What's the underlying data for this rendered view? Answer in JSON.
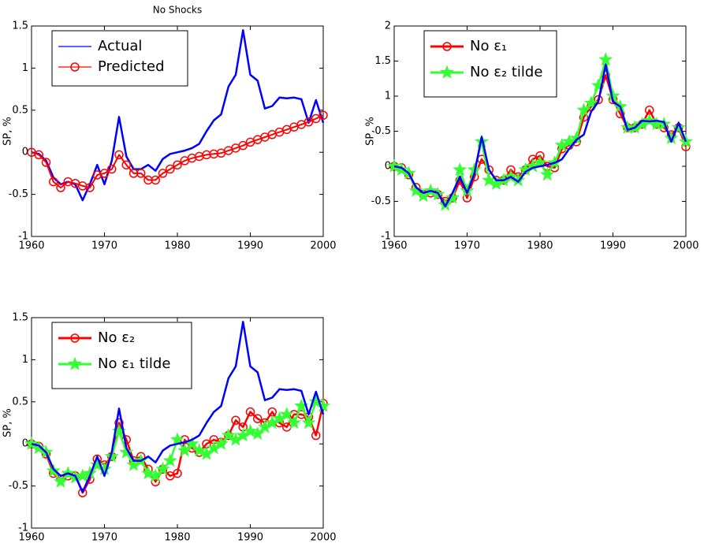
{
  "chart_data": [
    {
      "type": "line",
      "title": "No Shocks",
      "ylabel": "SP, %",
      "x": [
        1960,
        1961,
        1962,
        1963,
        1964,
        1965,
        1966,
        1967,
        1968,
        1969,
        1970,
        1971,
        1972,
        1973,
        1974,
        1975,
        1976,
        1977,
        1978,
        1979,
        1980,
        1981,
        1982,
        1983,
        1984,
        1985,
        1986,
        1987,
        1988,
        1989,
        1990,
        1991,
        1992,
        1993,
        1994,
        1995,
        1996,
        1997,
        1998,
        1999,
        2000
      ],
      "series": [
        {
          "name": "Actual",
          "color": "#0000ff",
          "marker": "none",
          "values": [
            0,
            -0.02,
            -0.1,
            -0.3,
            -0.38,
            -0.35,
            -0.38,
            -0.57,
            -0.38,
            -0.15,
            -0.38,
            -0.1,
            0.42,
            -0.05,
            -0.2,
            -0.2,
            -0.15,
            -0.22,
            -0.08,
            -0.02,
            0.0,
            0.02,
            0.05,
            0.1,
            0.25,
            0.38,
            0.45,
            0.78,
            0.92,
            1.45,
            0.92,
            0.85,
            0.52,
            0.55,
            0.65,
            0.64,
            0.65,
            0.63,
            0.35,
            0.62,
            0.35
          ]
        },
        {
          "name": "Predicted",
          "color": "#ff0000",
          "marker": "circle",
          "values": [
            0,
            -0.03,
            -0.12,
            -0.35,
            -0.42,
            -0.35,
            -0.37,
            -0.4,
            -0.42,
            -0.27,
            -0.25,
            -0.2,
            -0.03,
            -0.15,
            -0.25,
            -0.25,
            -0.33,
            -0.33,
            -0.25,
            -0.2,
            -0.15,
            -0.1,
            -0.07,
            -0.05,
            -0.03,
            -0.02,
            -0.01,
            0.02,
            0.05,
            0.08,
            0.12,
            0.15,
            0.18,
            0.21,
            0.24,
            0.27,
            0.3,
            0.33,
            0.36,
            0.4,
            0.44
          ]
        }
      ],
      "xlim": [
        1960,
        2000
      ],
      "xticks": [
        1960,
        1970,
        1980,
        1990,
        2000
      ],
      "ylim": [
        -1,
        1.5
      ],
      "yticks": [
        -1,
        -0.5,
        0,
        0.5,
        1,
        1.5
      ],
      "legend": "upper left"
    },
    {
      "type": "line",
      "ylabel": "SP, %",
      "x": [
        1960,
        1961,
        1962,
        1963,
        1964,
        1965,
        1966,
        1967,
        1968,
        1969,
        1970,
        1971,
        1972,
        1973,
        1974,
        1975,
        1976,
        1977,
        1978,
        1979,
        1980,
        1981,
        1982,
        1983,
        1984,
        1985,
        1986,
        1987,
        1988,
        1989,
        1990,
        1991,
        1992,
        1993,
        1994,
        1995,
        1996,
        1997,
        1998,
        1999,
        2000
      ],
      "series": [
        {
          "name": "No ε₁",
          "color": "#ff0000",
          "marker": "circle",
          "values": [
            0,
            -0.02,
            -0.12,
            -0.3,
            -0.4,
            -0.38,
            -0.4,
            -0.5,
            -0.45,
            -0.2,
            -0.45,
            -0.15,
            0.1,
            -0.05,
            -0.2,
            -0.2,
            -0.05,
            -0.15,
            -0.05,
            0.1,
            0.15,
            0,
            -0.02,
            0.25,
            0.3,
            0.35,
            0.7,
            0.85,
            0.95,
            1.3,
            0.95,
            0.75,
            0.55,
            0.55,
            0.6,
            0.8,
            0.6,
            0.55,
            0.45,
            0.55,
            0.28
          ]
        },
        {
          "name": "No ε₂ tilde",
          "color": "#33ff33",
          "marker": "star",
          "values": [
            0,
            -0.05,
            -0.1,
            -0.35,
            -0.42,
            -0.35,
            -0.4,
            -0.55,
            -0.45,
            -0.05,
            -0.35,
            -0.05,
            0.35,
            -0.2,
            -0.25,
            -0.2,
            -0.15,
            -0.2,
            -0.05,
            0,
            0.05,
            -0.12,
            0.05,
            0.3,
            0.35,
            0.4,
            0.8,
            0.9,
            1.15,
            1.52,
            1,
            0.85,
            0.55,
            0.55,
            0.6,
            0.65,
            0.6,
            0.6,
            0.4,
            0.55,
            0.35
          ]
        },
        {
          "color": "#0000ff",
          "marker": "none",
          "values": [
            0,
            -0.02,
            -0.1,
            -0.3,
            -0.38,
            -0.35,
            -0.38,
            -0.57,
            -0.38,
            -0.15,
            -0.38,
            -0.1,
            0.42,
            -0.05,
            -0.2,
            -0.2,
            -0.15,
            -0.22,
            -0.08,
            -0.02,
            0.0,
            0.02,
            0.05,
            0.1,
            0.25,
            0.38,
            0.45,
            0.78,
            0.92,
            1.45,
            0.92,
            0.85,
            0.52,
            0.55,
            0.65,
            0.64,
            0.65,
            0.63,
            0.35,
            0.62,
            0.35
          ]
        }
      ],
      "xlim": [
        1960,
        2000
      ],
      "xticks": [
        1960,
        1970,
        1980,
        1990,
        2000
      ],
      "ylim": [
        -1,
        2
      ],
      "yticks": [
        -1,
        -0.5,
        0,
        0.5,
        1,
        1.5,
        2
      ],
      "legend": "upper left"
    },
    {
      "type": "line",
      "ylabel": "SP, %",
      "x": [
        1960,
        1961,
        1962,
        1963,
        1964,
        1965,
        1966,
        1967,
        1968,
        1969,
        1970,
        1971,
        1972,
        1973,
        1974,
        1975,
        1976,
        1977,
        1978,
        1979,
        1980,
        1981,
        1982,
        1983,
        1984,
        1985,
        1986,
        1987,
        1988,
        1989,
        1990,
        1991,
        1992,
        1993,
        1994,
        1995,
        1996,
        1997,
        1998,
        1999,
        2000
      ],
      "series": [
        {
          "name": "No ε₂",
          "color": "#ff0000",
          "marker": "circle",
          "values": [
            0,
            -0.03,
            -0.12,
            -0.35,
            -0.42,
            -0.38,
            -0.38,
            -0.58,
            -0.42,
            -0.18,
            -0.25,
            -0.15,
            0.25,
            0.05,
            -0.2,
            -0.15,
            -0.3,
            -0.45,
            -0.3,
            -0.38,
            -0.35,
            0.05,
            -0.05,
            -0.1,
            0,
            0.05,
            0.02,
            0.1,
            0.28,
            0.2,
            0.38,
            0.3,
            0.25,
            0.38,
            0.25,
            0.2,
            0.35,
            0.35,
            0.32,
            0.1,
            0.48
          ]
        },
        {
          "name": "No ε₁ tilde",
          "color": "#33ff33",
          "marker": "star",
          "values": [
            0,
            -0.05,
            -0.1,
            -0.32,
            -0.45,
            -0.35,
            -0.4,
            -0.38,
            -0.35,
            -0.25,
            -0.3,
            -0.15,
            0.15,
            -0.1,
            -0.25,
            -0.2,
            -0.35,
            -0.38,
            -0.3,
            -0.2,
            0.05,
            -0.08,
            0,
            -0.08,
            -0.12,
            -0.05,
            0,
            0.1,
            0.05,
            0.1,
            0.15,
            0.12,
            0.2,
            0.25,
            0.3,
            0.35,
            0.25,
            0.45,
            0.25,
            0.5,
            0.45
          ]
        },
        {
          "color": "#0000ff",
          "marker": "none",
          "values": [
            0,
            -0.02,
            -0.1,
            -0.3,
            -0.38,
            -0.35,
            -0.38,
            -0.57,
            -0.38,
            -0.15,
            -0.38,
            -0.1,
            0.42,
            -0.05,
            -0.2,
            -0.2,
            -0.15,
            -0.22,
            -0.08,
            -0.02,
            0.0,
            0.02,
            0.05,
            0.1,
            0.25,
            0.38,
            0.45,
            0.78,
            0.92,
            1.45,
            0.92,
            0.85,
            0.52,
            0.55,
            0.65,
            0.64,
            0.65,
            0.63,
            0.35,
            0.62,
            0.35
          ]
        }
      ],
      "xlim": [
        1960,
        2000
      ],
      "xticks": [
        1960,
        1970,
        1980,
        1990,
        2000
      ],
      "ylim": [
        -1,
        1.5
      ],
      "yticks": [
        -1,
        -0.5,
        0,
        0.5,
        1,
        1.5
      ],
      "legend": "upper left"
    }
  ]
}
